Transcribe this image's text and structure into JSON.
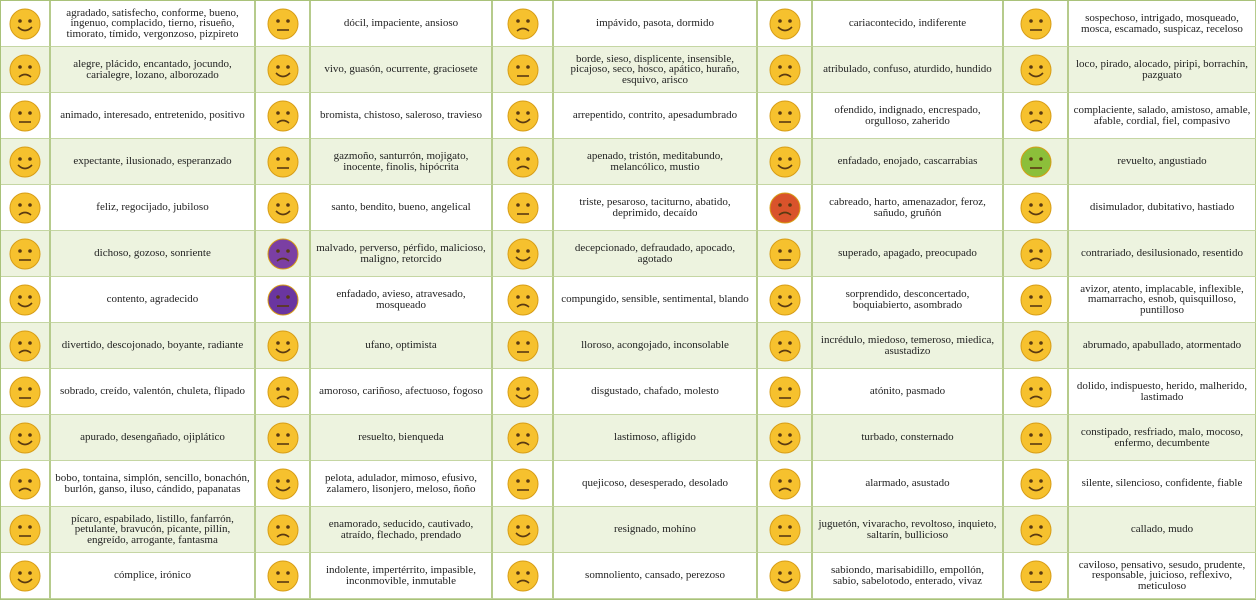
{
  "table": {
    "rows": [
      [
        "agradado, satisfecho, conforme, bueno, ingenuo, complacido, tierno, risueño, timorato, tímido, vergonzoso, pizpireto",
        "dócil, impaciente, ansioso",
        "impávido, pasota, dormido",
        "cariacontecido, indiferente",
        "sospechoso, intrigado, mosqueado, mosca, escamado, suspicaz, receloso"
      ],
      [
        "alegre, plácido, encantado, jocundo, carialegre, lozano, alborozado",
        "vivo, guasón, ocurrente, graciosete",
        "borde, sieso, displicente, insensible, picajoso, seco, hosco, apático, huraño, esquivo, arisco",
        "atribulado, confuso, aturdido, hundido",
        "loco, pirado, alocado, piripi, borrachín, pazguato"
      ],
      [
        "animado, interesado, entretenido, positivo",
        "bromista, chistoso, saleroso, travieso",
        "arrepentido, contrito, apesadumbrado",
        "ofendido, indignado, encrespado, orgulloso, zaherido",
        "complaciente, salado, amistoso, amable, afable, cordial, fiel, compasivo"
      ],
      [
        "expectante, ilusionado, esperanzado",
        "gazmoño, santurrón, mojigato, inocente, finolis, hipócrita",
        "apenado, tristón, meditabundo, melancólico, mustio",
        "enfadado, enojado, cascarrabias",
        "revuelto, angustiado"
      ],
      [
        "feliz, regocijado, jubiloso",
        "santo, bendito, bueno, angelical",
        "triste, pesaroso, taciturno, abatido, deprimido, decaído",
        "cabreado, harto, amenazador, feroz, sañudo, gruñón",
        "disimulador, dubitativo, hastiado"
      ],
      [
        "dichoso, gozoso, sonriente",
        "malvado, perverso, pérfido, malicioso, maligno, retorcido",
        "decepcionado, defraudado, apocado, agotado",
        "superado, apagado, preocupado",
        "contrariado, desilusionado, resentido"
      ],
      [
        "contento, agradecido",
        "enfadado, avieso, atravesado, mosqueado",
        "compungido, sensible, sentimental, blando",
        "sorprendido, desconcertado, boquiabierto, asombrado",
        "avizor, atento, implacable, inflexible, mamarracho, esnob, quisquilloso, puntilloso"
      ],
      [
        "divertido, descojonado, boyante, radiante",
        "ufano, optimista",
        "lloroso, acongojado, inconsolable",
        "incrédulo, miedoso, temeroso, miedica, asustadizo",
        "abrumado, apabullado, atormentado"
      ],
      [
        "sobrado, creído, valentón, chuleta, flipado",
        "amoroso, cariñoso, afectuoso, fogoso",
        "disgustado, chafado, molesto",
        "atónito, pasmado",
        "dolido, indispuesto, herido, malherido, lastimado"
      ],
      [
        "apurado, desengañado, ojiplático",
        "resuelto, bienqueda",
        "lastimoso, afligido",
        "turbado, consternado",
        "constipado, resfriado, malo, mocoso, enfermo, decumbente"
      ],
      [
        "bobo, tontaina, simplón, sencillo, bonachón, burlón, ganso, iluso, cándido, papanatas",
        "pelota, adulador, mimoso, efusivo, zalamero, lisonjero, meloso, ñoño",
        "quejicoso, desesperado, desolado",
        "alarmado, asustado",
        "silente, silencioso, confidente, fiable"
      ],
      [
        "pícaro, espabilado, listillo, fanfarrón, petulante, bravucón, picante, pillín, engreído, arrogante, fantasma",
        "enamorado, seducido, cautivado, atraído, flechado, prendado",
        "resignado, mohíno",
        "juguetón, vivaracho, revoltoso, inquieto, saltarín, bullicioso",
        "callado, mudo"
      ],
      [
        "cómplice, irónico",
        "indolente, impertérrito, impasible, inconmovible, inmutable",
        "somnoliento, cansado, perezoso",
        "sabiondo, marisabidillo, empollón, sabio, sabelotodo, enterado, vivaz",
        "caviloso, pensativo, sesudo, prudente, responsable, juicioso, reflexivo, meticuloso"
      ]
    ]
  }
}
